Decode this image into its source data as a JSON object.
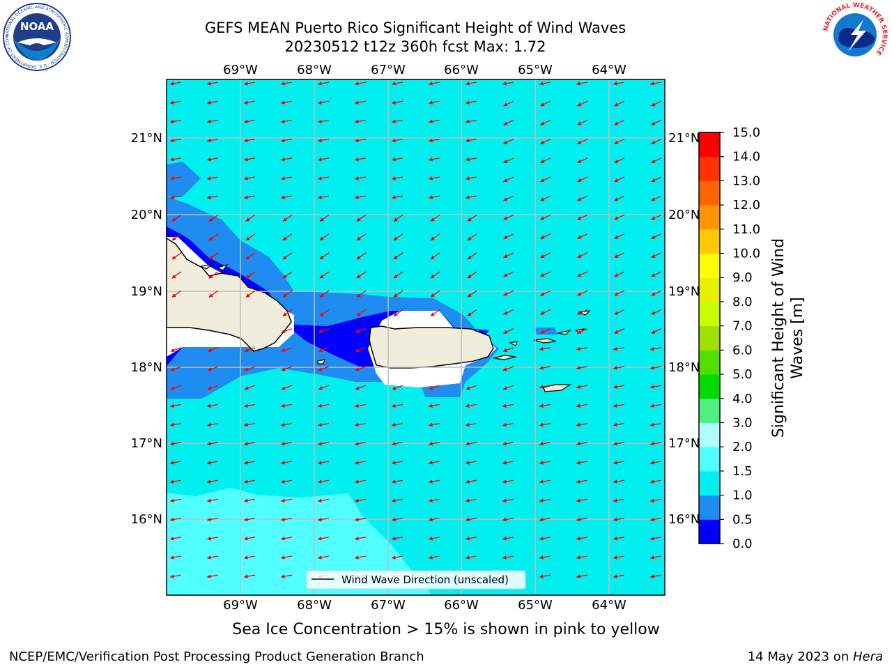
{
  "header": {
    "title_line1": "GEFS MEAN Puerto Rico Significant Height of Wind Waves",
    "title_line2": "20230512 t12z 360h fcst   Max: 1.72"
  },
  "logos": {
    "noaa": {
      "text": "NOAA",
      "ring_text": "NATIONAL OCEANIC AND ATMOSPHERIC ADMINISTRATION · U.S. DEPARTMENT OF COMMERCE"
    },
    "nws": {
      "ring_text": "NATIONAL WEATHER SERVICE"
    }
  },
  "map": {
    "lon_labels": [
      "69°W",
      "68°W",
      "67°W",
      "66°W",
      "65°W",
      "64°W"
    ],
    "lat_labels": [
      "21°N",
      "20°N",
      "19°N",
      "18°N",
      "17°N",
      "16°N"
    ],
    "legend_label": "Wind Wave Direction (unscaled)",
    "colors": {
      "ocean": "#00f0f0",
      "band_0_5_1": "#1e8cf0",
      "band_0_0_5": "#0000ff",
      "band_1_5_2": "#50ffff",
      "land": "#f0eddc",
      "arrows": "#ff0000"
    }
  },
  "colorbar": {
    "label": "Significant Height of Wind Waves [m]",
    "label_line1": "Significant Height of Wind",
    "label_line2": "Waves [m]",
    "ticks": [
      "0.0",
      "0.5",
      "1.0",
      "1.5",
      "2.0",
      "3.0",
      "4.0",
      "5.0",
      "6.0",
      "7.0",
      "8.0",
      "9.0",
      "10.0",
      "11.0",
      "12.0",
      "13.0",
      "14.0",
      "15.0"
    ],
    "colors": [
      "#0000ff",
      "#1e8cf0",
      "#00f0f0",
      "#50ffff",
      "#b0ffff",
      "#50f080",
      "#00dc00",
      "#50e000",
      "#a0e000",
      "#c8ff00",
      "#e6f000",
      "#ffff00",
      "#ffc800",
      "#ff9600",
      "#ff6400",
      "#ff3200",
      "#ff0000"
    ]
  },
  "caption": "Sea Ice Concentration > 15% is shown in pink to yellow",
  "footer": {
    "left": "NCEP/EMC/Verification Post Processing Product Generation Branch",
    "right_prefix": "14 May 2023 on ",
    "right_italic": "Hera"
  }
}
